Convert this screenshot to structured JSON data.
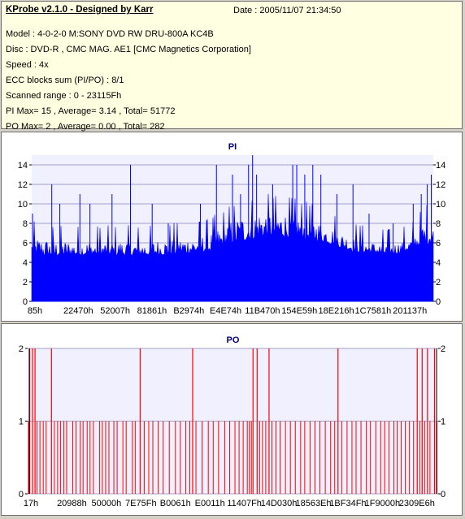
{
  "header": {
    "title": "KProbe v2.1.0 - Designed by Karr",
    "date": "Date : 2005/11/07 21:34:50",
    "lines": [
      "Model : 4-0-2-0 M:SONY    DVD RW DRU-800A  KC4B",
      "Disc : DVD-R , CMC MAG. AE1 [CMC Magnetics Corporation]",
      "Speed : 4x",
      "ECC blocks sum (PI/PO) : 8/1",
      "Scanned range : 0 - 23115Fh",
      "PI Max= 15 , Average= 3.14 , Total= 51772",
      "PO Max= 2 , Average= 0.00 , Total= 282"
    ]
  },
  "colors": {
    "pi_fill": "#0000ff",
    "po_line": "#ff0000",
    "plot_bg": "#f0f0ff",
    "grid": "#a0a0c8",
    "title": "#000080"
  },
  "chart_data": [
    {
      "type": "bar",
      "title": "PI",
      "ylim": [
        0,
        15
      ],
      "yticks": [
        0,
        2,
        4,
        6,
        8,
        10,
        12,
        14
      ],
      "xtick_labels": [
        "85h",
        "22470h",
        "52007h",
        "81861h",
        "B2974h",
        "E4E74h",
        "11B470h",
        "154E59h",
        "18E216h",
        "1C7581h",
        "201137h"
      ],
      "grid": true,
      "max": 15,
      "average": 3.14,
      "envelope": [
        [
          0,
          7
        ],
        [
          0.06,
          6.5
        ],
        [
          0.13,
          6.5
        ],
        [
          0.2,
          6.5
        ],
        [
          0.28,
          6.5
        ],
        [
          0.36,
          6.8
        ],
        [
          0.44,
          7.2
        ],
        [
          0.5,
          9
        ],
        [
          0.57,
          10
        ],
        [
          0.65,
          9.5
        ],
        [
          0.72,
          8.5
        ],
        [
          0.8,
          6.8
        ],
        [
          0.88,
          6
        ],
        [
          0.94,
          6.5
        ],
        [
          1.0,
          10
        ]
      ],
      "baseline": [
        [
          0,
          4.7
        ],
        [
          0.1,
          4.7
        ],
        [
          0.3,
          4.7
        ],
        [
          0.45,
          5.1
        ],
        [
          0.5,
          6
        ],
        [
          0.6,
          6.8
        ],
        [
          0.72,
          6.2
        ],
        [
          0.8,
          5.1
        ],
        [
          0.9,
          4.8
        ],
        [
          1.0,
          6
        ]
      ],
      "spikes": [
        [
          0.002,
          9
        ],
        [
          0.05,
          12
        ],
        [
          0.07,
          10
        ],
        [
          0.12,
          11
        ],
        [
          0.145,
          10
        ],
        [
          0.2,
          11
        ],
        [
          0.246,
          14
        ],
        [
          0.3,
          10
        ],
        [
          0.34,
          8
        ],
        [
          0.42,
          10
        ],
        [
          0.46,
          14
        ],
        [
          0.5,
          13
        ],
        [
          0.52,
          11
        ],
        [
          0.54,
          14
        ],
        [
          0.55,
          15
        ],
        [
          0.56,
          13
        ],
        [
          0.6,
          12
        ],
        [
          0.65,
          14
        ],
        [
          0.66,
          14
        ],
        [
          0.68,
          13
        ],
        [
          0.7,
          14
        ],
        [
          0.72,
          13
        ],
        [
          0.76,
          11
        ],
        [
          0.8,
          12
        ],
        [
          0.84,
          9
        ],
        [
          0.9,
          8
        ],
        [
          0.95,
          10
        ],
        [
          0.97,
          11
        ],
        [
          0.985,
          12
        ],
        [
          0.995,
          13
        ]
      ]
    },
    {
      "type": "bar",
      "title": "PO",
      "ylim": [
        0,
        2
      ],
      "yticks": [
        0,
        1,
        2
      ],
      "xtick_labels": [
        "17h",
        "20988h",
        "50000h",
        "7E75Fh",
        "B0061h",
        "E0011h",
        "11407Fh",
        "14D030h",
        "18563Eh",
        "1BF34Fh",
        "1F9000h",
        "2309E6h"
      ],
      "grid": true,
      "max": 2,
      "average": 0.0,
      "twos": [
        0.005,
        0.012,
        0.018,
        0.058,
        0.274,
        0.402,
        0.549,
        0.559,
        0.588,
        0.756,
        0.949,
        0.961,
        0.974,
        0.991
      ],
      "ones": [
        0.002,
        0.023,
        0.03,
        0.038,
        0.045,
        0.065,
        0.073,
        0.08,
        0.088,
        0.095,
        0.11,
        0.118,
        0.128,
        0.135,
        0.145,
        0.152,
        0.16,
        0.175,
        0.182,
        0.19,
        0.198,
        0.21,
        0.218,
        0.232,
        0.24,
        0.255,
        0.262,
        0.284,
        0.295,
        0.305,
        0.318,
        0.33,
        0.345,
        0.36,
        0.372,
        0.385,
        0.395,
        0.41,
        0.425,
        0.44,
        0.452,
        0.465,
        0.48,
        0.492,
        0.505,
        0.515,
        0.525,
        0.535,
        0.54,
        0.545,
        0.565,
        0.572,
        0.58,
        0.595,
        0.605,
        0.615,
        0.628,
        0.64,
        0.652,
        0.665,
        0.675,
        0.688,
        0.7,
        0.712,
        0.725,
        0.738,
        0.748,
        0.765,
        0.778,
        0.79,
        0.8,
        0.812,
        0.825,
        0.835,
        0.848,
        0.86,
        0.87,
        0.88,
        0.892,
        0.9,
        0.91,
        0.92,
        0.93,
        0.94,
        0.955,
        0.967,
        0.98,
        0.997
      ]
    }
  ]
}
